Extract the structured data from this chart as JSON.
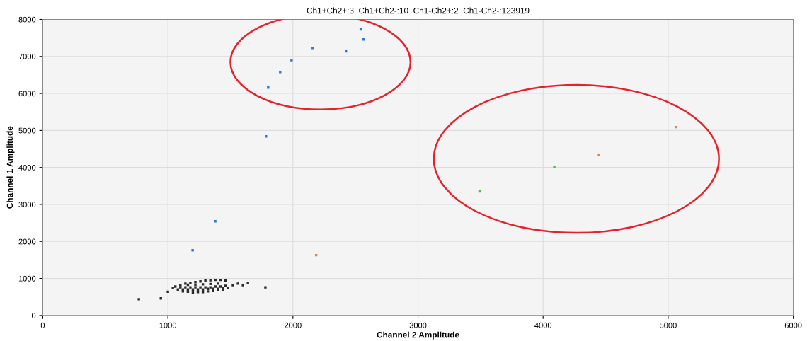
{
  "chart_data": {
    "type": "scatter",
    "title": "Ch1+Ch2+:3  Ch1+Ch2-:10  Ch1-Ch2+:2  Ch1-Ch2-:123919",
    "xlabel": "Channel 2 Amplitude",
    "ylabel": "Channel 1 Amplitude",
    "xlim": [
      0,
      6000
    ],
    "ylim": [
      0,
      8000
    ],
    "xticks": [
      0,
      1000,
      2000,
      3000,
      4000,
      5000,
      6000
    ],
    "yticks": [
      0,
      1000,
      2000,
      3000,
      4000,
      5000,
      6000,
      7000,
      8000
    ],
    "grid": true,
    "marker": "square",
    "legend": false,
    "series": [
      {
        "color": "#2a2a2a",
        "x": [
          768,
          944,
          1000,
          1040,
          1060,
          1080,
          1100,
          1120,
          1140,
          1160,
          1180,
          1200,
          1220,
          1240,
          1260,
          1280,
          1300,
          1320,
          1340,
          1360,
          1380,
          1400,
          1420,
          1440,
          1460,
          1480,
          1100,
          1140,
          1180,
          1220,
          1260,
          1300,
          1340,
          1380,
          1420,
          1460,
          1120,
          1160,
          1200,
          1240,
          1280,
          1320,
          1360,
          1400,
          1440,
          1160,
          1220,
          1280,
          1340,
          1400,
          1520,
          1560,
          1600,
          1640,
          1780
        ],
        "values": [
          440,
          460,
          640,
          740,
          780,
          700,
          820,
          650,
          860,
          640,
          880,
          620,
          900,
          630,
          920,
          630,
          940,
          650,
          950,
          660,
          960,
          680,
          960,
          700,
          940,
          740,
          760,
          760,
          760,
          760,
          760,
          760,
          760,
          780,
          780,
          800,
          700,
          700,
          700,
          700,
          700,
          720,
          720,
          720,
          740,
          830,
          830,
          840,
          850,
          860,
          820,
          860,
          820,
          880,
          760
        ]
      },
      {
        "color": "#2b7bd6",
        "x": [
          1198,
          1379,
          1785,
          1802,
          1898,
          1989,
          2158,
          2424,
          2542,
          2565
        ],
        "values": [
          1760,
          2545,
          4840,
          6160,
          6580,
          6900,
          7230,
          7140,
          7730,
          7460
        ]
      },
      {
        "color": "#e8823a",
        "x": [
          2186,
          4446,
          5062
        ],
        "values": [
          1630,
          4340,
          5090
        ]
      },
      {
        "color": "#3cc83c",
        "x": [
          3492,
          4090
        ],
        "values": [
          3350,
          4020
        ]
      }
    ]
  }
}
